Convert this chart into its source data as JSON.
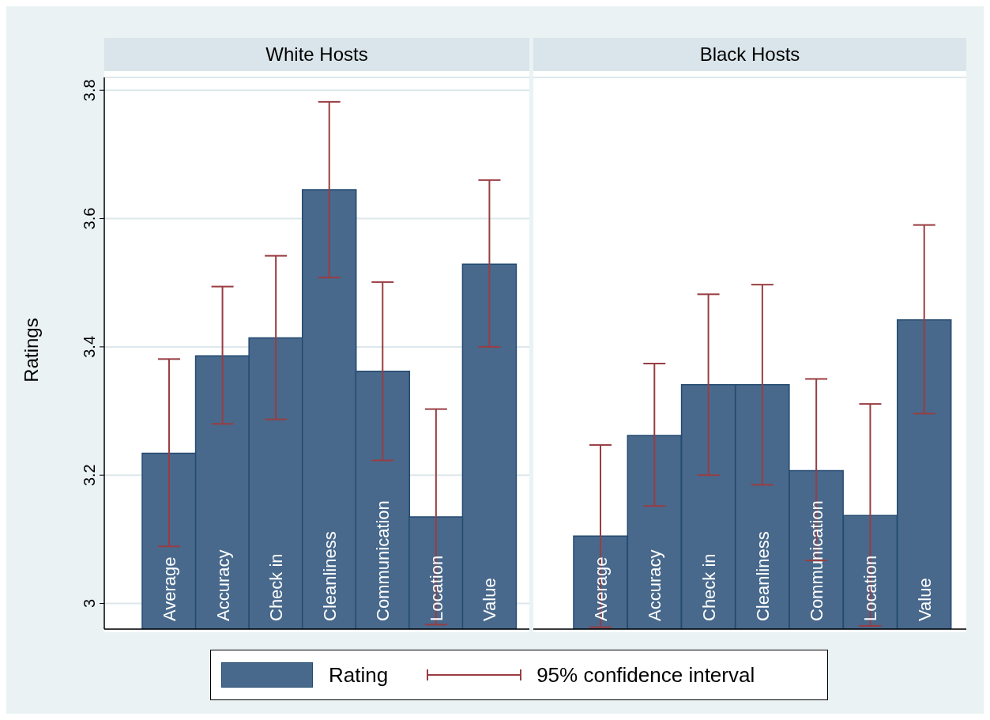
{
  "chart_data": [
    {
      "type": "bar",
      "title": "White Hosts",
      "ylabel": "Ratings",
      "categories": [
        "Average",
        "Accuracy",
        "Check in",
        "Cleanliness",
        "Communication",
        "Location",
        "Value"
      ],
      "series": [
        {
          "name": "Rating",
          "color": "#48698c",
          "values": [
            3.234,
            3.386,
            3.414,
            3.645,
            3.362,
            3.135,
            3.529
          ],
          "errors": [
            [
              3.089,
              3.381
            ],
            [
              3.28,
              3.494
            ],
            [
              3.287,
              3.542
            ],
            [
              3.508,
              3.782
            ],
            [
              3.223,
              3.501
            ],
            [
              2.967,
              3.303
            ],
            [
              3.4,
              3.66
            ]
          ]
        }
      ],
      "ylim": [
        2.96,
        3.82
      ],
      "yticks": [
        3,
        3.2,
        3.4,
        3.6,
        3.8
      ],
      "grid": "y",
      "legend": "bottom",
      "annotations": [
        "95% confidence interval"
      ]
    },
    {
      "type": "bar",
      "title": "Black Hosts",
      "categories": [
        "Average",
        "Accuracy",
        "Check in",
        "Cleanliness",
        "Communication",
        "Location",
        "Value"
      ],
      "series": [
        {
          "color": "#48698c",
          "values": [
            3.105,
            3.262,
            3.341,
            3.341,
            3.207,
            3.137,
            3.442
          ],
          "errors": [
            [
              2.963,
              3.247
            ],
            [
              3.152,
              3.374
            ],
            [
              3.2,
              3.482
            ],
            [
              3.185,
              3.497
            ],
            [
              3.067,
              3.35
            ],
            [
              2.965,
              3.311
            ],
            [
              3.296,
              3.59
            ]
          ]
        }
      ],
      "ylim": [
        2.96,
        3.82
      ],
      "yticks": [
        3,
        3.2,
        3.4,
        3.6,
        3.8
      ],
      "grid": "y",
      "tick_labels": "x"
    }
  ]
}
